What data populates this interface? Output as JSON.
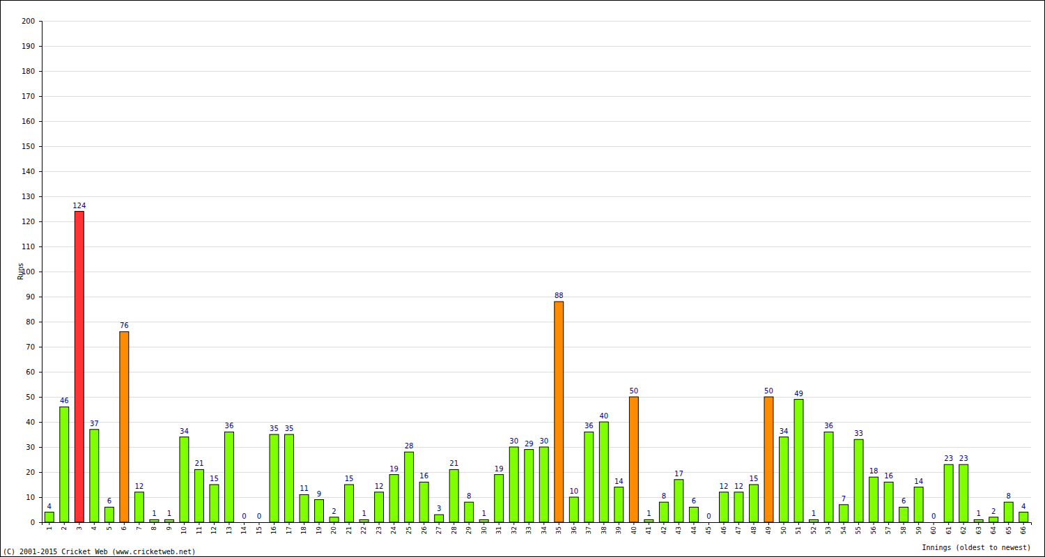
{
  "chart_data": {
    "type": "bar",
    "x_label": "Innings (oldest to newest)",
    "y_label": "Runs",
    "annotations": [
      "(C) 2001-2015 Cricket Web (www.cricketweb.net)"
    ],
    "categories": [
      "1",
      "2",
      "3",
      "4",
      "5",
      "6",
      "7",
      "8",
      "9",
      "10",
      "11",
      "12",
      "13",
      "14",
      "15",
      "16",
      "17",
      "18",
      "19",
      "20",
      "21",
      "22",
      "23",
      "24",
      "25",
      "26",
      "27",
      "28",
      "29",
      "30",
      "31",
      "32",
      "33",
      "34",
      "35",
      "36",
      "37",
      "38",
      "39",
      "40",
      "41",
      "42",
      "43",
      "44",
      "45",
      "46",
      "47",
      "48",
      "49",
      "50",
      "51",
      "52",
      "53",
      "54",
      "55",
      "56",
      "57",
      "58",
      "59",
      "60",
      "61",
      "62",
      "63",
      "64",
      "65",
      "66"
    ],
    "values": [
      4,
      46,
      124,
      37,
      6,
      76,
      12,
      1,
      1,
      34,
      21,
      15,
      36,
      0,
      0,
      35,
      35,
      11,
      9,
      2,
      15,
      1,
      12,
      19,
      28,
      16,
      3,
      21,
      8,
      1,
      19,
      30,
      29,
      30,
      88,
      10,
      36,
      40,
      14,
      50,
      1,
      8,
      17,
      6,
      0,
      12,
      12,
      15,
      50,
      34,
      49,
      1,
      36,
      7,
      33,
      18,
      16,
      6,
      14,
      0,
      23,
      23,
      1,
      2,
      8,
      4
    ],
    "colors": [
      "#80ff00",
      "#80ff00",
      "#ff3333",
      "#80ff00",
      "#80ff00",
      "#ff8c00",
      "#80ff00",
      "#80ff00",
      "#80ff00",
      "#80ff00",
      "#80ff00",
      "#80ff00",
      "#80ff00",
      "#80ff00",
      "#80ff00",
      "#80ff00",
      "#80ff00",
      "#80ff00",
      "#80ff00",
      "#80ff00",
      "#80ff00",
      "#80ff00",
      "#80ff00",
      "#80ff00",
      "#80ff00",
      "#80ff00",
      "#80ff00",
      "#80ff00",
      "#80ff00",
      "#80ff00",
      "#80ff00",
      "#80ff00",
      "#80ff00",
      "#80ff00",
      "#ff8c00",
      "#80ff00",
      "#80ff00",
      "#80ff00",
      "#80ff00",
      "#ff8c00",
      "#80ff00",
      "#80ff00",
      "#80ff00",
      "#80ff00",
      "#80ff00",
      "#80ff00",
      "#80ff00",
      "#80ff00",
      "#ff8c00",
      "#80ff00",
      "#80ff00",
      "#80ff00",
      "#80ff00",
      "#80ff00",
      "#80ff00",
      "#80ff00",
      "#80ff00",
      "#80ff00",
      "#80ff00",
      "#80ff00",
      "#80ff00",
      "#80ff00",
      "#80ff00",
      "#80ff00",
      "#80ff00",
      "#80ff00"
    ],
    "ylim": [
      0,
      200
    ],
    "yticks": [
      0,
      10,
      20,
      30,
      40,
      50,
      60,
      70,
      80,
      90,
      100,
      110,
      120,
      130,
      140,
      150,
      160,
      170,
      180,
      190,
      200
    ],
    "grid": true,
    "data_labels": true
  }
}
